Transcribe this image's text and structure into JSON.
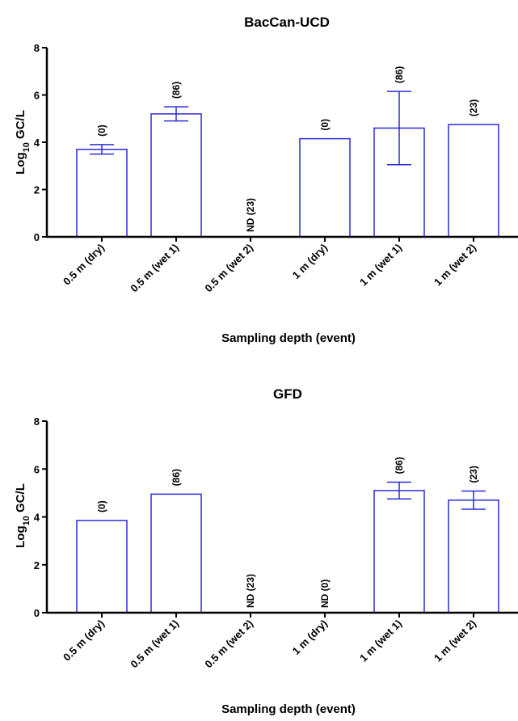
{
  "colors": {
    "bar": "#2b2bd9",
    "axis": "#000000"
  },
  "chart_data": [
    {
      "type": "bar",
      "title": "BacCan-UCD",
      "ylabel_main": "Log",
      "ylabel_sub": "10",
      "ylabel_rest": " GC/L",
      "xlabel": "Sampling depth (event)",
      "ylim": [
        0,
        8
      ],
      "yticks": [
        "0",
        "2",
        "4",
        "6",
        "8"
      ],
      "categories": [
        "0.5 m (dry)",
        "0.5 m (wet 1)",
        "0.5 m (wet 2)",
        "1 m (dry)",
        "1 m (wet 1)",
        "1 m (wet 2)"
      ],
      "values": [
        3.7,
        5.2,
        null,
        4.15,
        4.6,
        4.75
      ],
      "error": [
        0.2,
        0.3,
        null,
        null,
        1.55,
        null
      ],
      "annotations": [
        "(0)",
        "(86)",
        "ND (23)",
        "(0)",
        "(86)",
        "(23)"
      ]
    },
    {
      "type": "bar",
      "title": "GFD",
      "ylabel_main": "Log",
      "ylabel_sub": "10",
      "ylabel_rest": " GC/L",
      "xlabel": "Sampling depth (event)",
      "ylim": [
        0,
        8
      ],
      "yticks": [
        "0",
        "2",
        "4",
        "6",
        "8"
      ],
      "categories": [
        "0.5 m (dry)",
        "0.5 m (wet 1)",
        "0.5 m (wet 2)",
        "1 m (dry)",
        "1 m (wet 1)",
        "1 m (wet 2)"
      ],
      "values": [
        3.85,
        4.95,
        null,
        null,
        5.1,
        4.7
      ],
      "error": [
        null,
        null,
        null,
        null,
        0.35,
        0.38
      ],
      "annotations": [
        "(0)",
        "(86)",
        "ND (23)",
        "ND (0)",
        "(86)",
        "(23)"
      ]
    }
  ]
}
